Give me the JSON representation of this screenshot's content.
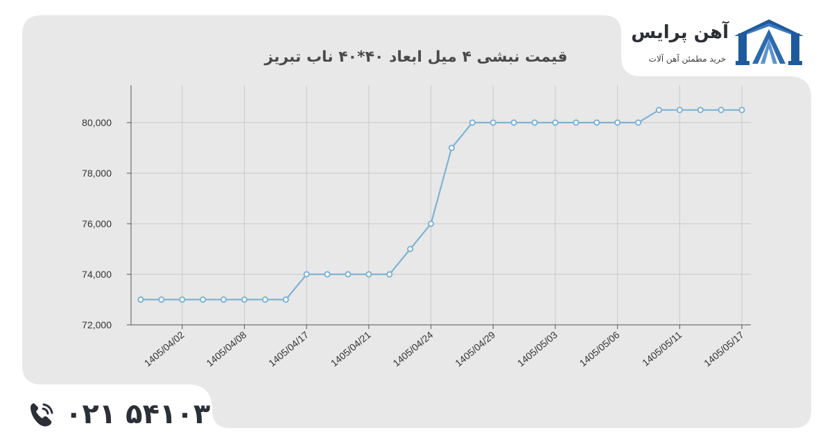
{
  "brand": {
    "name": "آهن پرایس",
    "tagline": "خرید مطمئن آهن آلات",
    "logo_color": "#1f5a9e"
  },
  "contact": {
    "phone": "۰۲۱ ۵۴۱۰۳"
  },
  "colors": {
    "panel": "#e8e8e8",
    "series": "#7eb3d3",
    "grid": "#c9c9c9",
    "axis": "#555555"
  },
  "chart_data": {
    "type": "line",
    "title": "قیمت نبشی ۴ میل ابعاد ۴۰*۴۰ ناب تبریز",
    "xlabel": "",
    "ylabel": "",
    "ylim": [
      72000,
      81500
    ],
    "yticks": [
      72000,
      74000,
      76000,
      78000,
      80000
    ],
    "ytick_labels": [
      "72,000",
      "74,000",
      "76,000",
      "78,000",
      "80,000"
    ],
    "xtick_labels": [
      "1405/04/02",
      "1405/04/08",
      "1405/04/17",
      "1405/04/21",
      "1405/04/24",
      "1405/04/29",
      "1405/05/03",
      "1405/05/06",
      "1405/05/11",
      "1405/05/17"
    ],
    "grid": true,
    "series": [
      {
        "values": [
          73000,
          73000,
          73000,
          73000,
          73000,
          73000,
          73000,
          73000,
          74000,
          74000,
          74000,
          74000,
          74000,
          75000,
          76000,
          79000,
          80000,
          80000,
          80000,
          80000,
          80000,
          80000,
          80000,
          80000,
          80000,
          80500,
          80500,
          80500,
          80500,
          80500
        ]
      }
    ]
  }
}
